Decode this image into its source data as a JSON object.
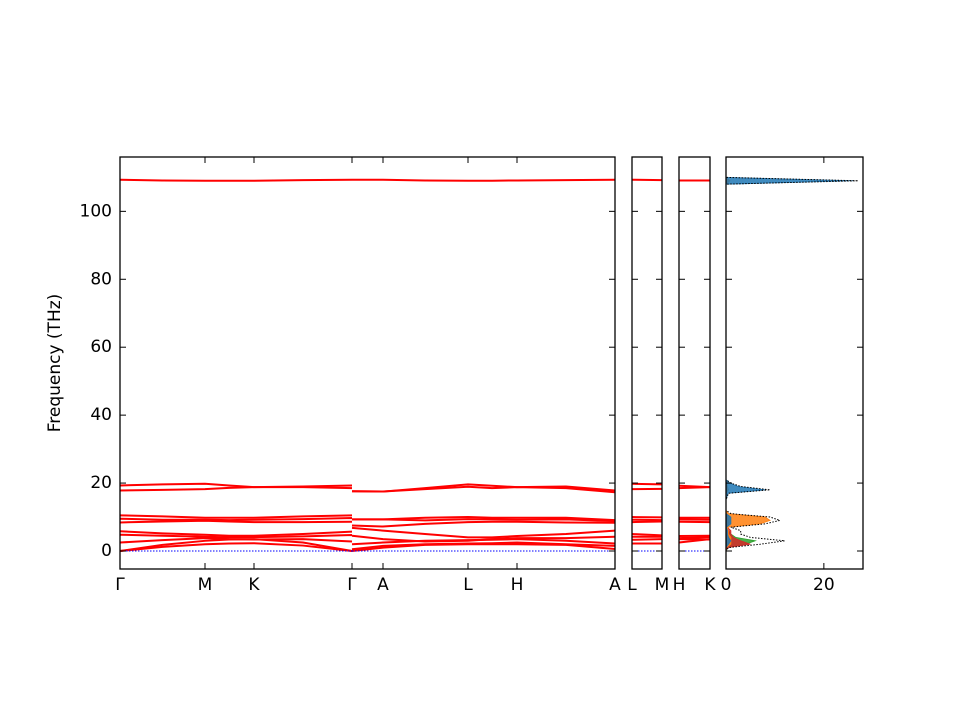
{
  "chart_data": [
    {
      "type": "line",
      "ylabel": "Frequency (THz)",
      "color": "#ff0000",
      "x": [
        0,
        0.425,
        0.85,
        1.09,
        1.34,
        1.83,
        2.32,
        2.32,
        2.32,
        2.63,
        3.05,
        3.48,
        3.72,
        3.97,
        4.46,
        4.95
      ],
      "xlim": [
        0,
        4.95
      ],
      "xticks": [
        {
          "value": 0,
          "label": "Γ"
        },
        {
          "value": 0.85,
          "label": "M"
        },
        {
          "value": 1.34,
          "label": "K"
        },
        {
          "value": 2.32,
          "label": "Γ"
        },
        {
          "value": 2.63,
          "label": "A"
        },
        {
          "value": 3.48,
          "label": "L"
        },
        {
          "value": 3.97,
          "label": "H"
        },
        {
          "value": 4.95,
          "label": "A"
        }
      ],
      "ylim": [
        -5.3,
        116
      ],
      "yticks": [
        0,
        20,
        40,
        60,
        80,
        100
      ],
      "series": [
        {
          "values": [
            109.3,
            109.1,
            109,
            109,
            109,
            109.2,
            109.3,
            null,
            109.3,
            109.3,
            109.1,
            109,
            109,
            109.1,
            109.2,
            109.3
          ]
        },
        {
          "values": [
            19.3,
            19.6,
            19.8,
            19.3,
            18.8,
            19,
            19.3,
            null,
            17.6,
            17.5,
            18.5,
            19.6,
            19.2,
            18.8,
            19,
            17.8
          ]
        },
        {
          "values": [
            17.8,
            18,
            18.2,
            18.6,
            18.8,
            18.8,
            18.5,
            null,
            17.6,
            17.5,
            18.2,
            18.9,
            18.5,
            18.8,
            18.5,
            17.3
          ]
        },
        {
          "values": [
            10.5,
            10.2,
            9.8,
            9.8,
            9.8,
            10.2,
            10.5,
            null,
            9.3,
            9.3,
            9.8,
            10,
            9.8,
            9.8,
            9.8,
            9.1
          ]
        },
        {
          "values": [
            9.5,
            9.2,
            9.2,
            9.1,
            9.2,
            9.4,
            9.7,
            null,
            9.3,
            9.3,
            9,
            9.4,
            9.3,
            9.2,
            9.3,
            8.8
          ]
        },
        {
          "values": [
            8.4,
            8.7,
            8.9,
            8.7,
            8.5,
            8.5,
            8.6,
            null,
            7.5,
            7.2,
            8,
            8.5,
            8.6,
            8.6,
            8.4,
            8.3
          ]
        },
        {
          "values": [
            5.8,
            5.2,
            4.8,
            4.5,
            4.5,
            5,
            5.7,
            null,
            6.8,
            6,
            5,
            4,
            4,
            4.4,
            5,
            6
          ]
        },
        {
          "values": [
            4.8,
            4.5,
            4.2,
            4,
            4.1,
            4.3,
            4.7,
            null,
            4.5,
            3.5,
            2.8,
            3,
            3.5,
            3.8,
            3.8,
            4.2
          ]
        },
        {
          "values": [
            2.5,
            3.2,
            3.8,
            3.5,
            3.4,
            3.5,
            2.8,
            null,
            2,
            2.5,
            3,
            3.2,
            3.3,
            3.5,
            3,
            2.2
          ]
        },
        {
          "values": [
            0,
            1.8,
            3,
            3.4,
            3.5,
            2.5,
            0,
            null,
            0.5,
            1.5,
            2,
            2.2,
            2.3,
            2.5,
            2,
            1.5
          ]
        },
        {
          "values": [
            0,
            1.2,
            2,
            2.2,
            2.3,
            1.6,
            0,
            null,
            0,
            1,
            1.8,
            2,
            2,
            2,
            1.8,
            0.6
          ]
        },
        {
          "color": "#0000ff",
          "linestyle": "dotted",
          "values": [
            0,
            0,
            0,
            0,
            0,
            0,
            0,
            null,
            0,
            0,
            0,
            0,
            0,
            0,
            0,
            0
          ]
        }
      ]
    },
    {
      "type": "line",
      "color": "#ff0000",
      "x": [
        0,
        1
      ],
      "xlim": [
        0,
        1
      ],
      "xticks": [
        {
          "value": 0,
          "label": "L"
        },
        {
          "value": 1,
          "label": "M"
        }
      ],
      "ylim": [
        -5.3,
        116
      ],
      "yticks": [
        0,
        20,
        40,
        60,
        80,
        100
      ],
      "series": [
        {
          "values": [
            109.3,
            109.2
          ]
        },
        {
          "values": [
            19.8,
            19.6
          ]
        },
        {
          "values": [
            18.2,
            18.3
          ]
        },
        {
          "values": [
            10,
            9.9
          ]
        },
        {
          "values": [
            9.2,
            9.1
          ]
        },
        {
          "values": [
            8.5,
            8.7
          ]
        },
        {
          "values": [
            5,
            4.6
          ]
        },
        {
          "values": [
            4.2,
            4.2
          ]
        },
        {
          "values": [
            3.3,
            3.5
          ]
        },
        {
          "values": [
            2.2,
            2.2
          ]
        },
        {
          "color": "#0000ff",
          "linestyle": "dotted",
          "values": [
            0,
            0
          ]
        }
      ]
    },
    {
      "type": "line",
      "color": "#ff0000",
      "x": [
        0,
        1
      ],
      "xlim": [
        0,
        1
      ],
      "xticks": [
        {
          "value": 0,
          "label": "H"
        },
        {
          "value": 1,
          "label": "K"
        }
      ],
      "ylim": [
        -5.3,
        116
      ],
      "yticks": [
        0,
        20,
        40,
        60,
        80,
        100
      ],
      "series": [
        {
          "values": [
            109.1,
            109.1
          ]
        },
        {
          "values": [
            19.2,
            18.8
          ]
        },
        {
          "values": [
            18.5,
            18.8
          ]
        },
        {
          "values": [
            9.8,
            9.8
          ]
        },
        {
          "values": [
            9.3,
            9.2
          ]
        },
        {
          "values": [
            8.6,
            8.5
          ]
        },
        {
          "values": [
            4.4,
            4.5
          ]
        },
        {
          "values": [
            3.8,
            4.1
          ]
        },
        {
          "values": [
            3.5,
            3.4
          ]
        },
        {
          "values": [
            2.5,
            3.5
          ]
        },
        {
          "color": "#0000ff",
          "linestyle": "dotted",
          "values": [
            0,
            0
          ]
        }
      ]
    },
    {
      "type": "dos",
      "xlim": [
        0,
        28
      ],
      "xticks": [
        0,
        20
      ],
      "ylim": [
        -5.3,
        116
      ],
      "yticks": [
        0,
        20,
        40,
        60,
        80,
        100
      ],
      "y": [
        -2,
        0,
        1,
        2,
        3,
        4,
        5,
        6,
        7,
        8,
        9,
        10,
        11,
        12,
        15,
        17,
        18,
        19,
        20,
        21,
        25,
        100,
        108,
        109,
        110,
        111
      ],
      "series": [
        {
          "color": "#2ca02c",
          "fill": true,
          "values": [
            0,
            0,
            0.3,
            4,
            6,
            2,
            1,
            0.5,
            0.2,
            0.5,
            0.5,
            0.3,
            0,
            0,
            0,
            0,
            0,
            0,
            0,
            0,
            0,
            0,
            0,
            0,
            0,
            0
          ]
        },
        {
          "color": "#d62728",
          "fill": true,
          "values": [
            0,
            0,
            0.2,
            5,
            3,
            1.5,
            1,
            1,
            0.3,
            0.5,
            0.4,
            0.3,
            0,
            0,
            0,
            0,
            0,
            0,
            0,
            0,
            0,
            0,
            0,
            0,
            0,
            0
          ]
        },
        {
          "color": "#ff7f0e",
          "fill": true,
          "values": [
            0,
            0,
            0,
            1,
            1,
            1,
            0.5,
            0.5,
            0.3,
            7,
            9,
            8,
            0.5,
            0,
            0,
            0,
            0.5,
            0.3,
            0.1,
            0,
            0,
            0,
            0,
            0.8,
            0,
            0
          ]
        },
        {
          "color": "#1f77b4",
          "fill": true,
          "values": [
            0,
            0,
            0,
            0.5,
            1,
            0.5,
            0.3,
            0.3,
            0.1,
            1,
            1,
            1,
            0,
            0,
            0,
            0.4,
            8,
            2.5,
            0.8,
            0,
            0,
            0,
            0,
            26,
            0,
            0
          ]
        },
        {
          "color": "#000000",
          "linestyle": "dotted",
          "values": [
            0,
            0,
            0.5,
            7,
            12,
            5,
            3,
            3,
            1,
            8,
            11,
            9,
            1,
            0,
            0,
            0.5,
            9,
            3,
            1,
            0,
            0,
            0,
            0,
            27,
            0,
            0
          ]
        }
      ]
    }
  ]
}
